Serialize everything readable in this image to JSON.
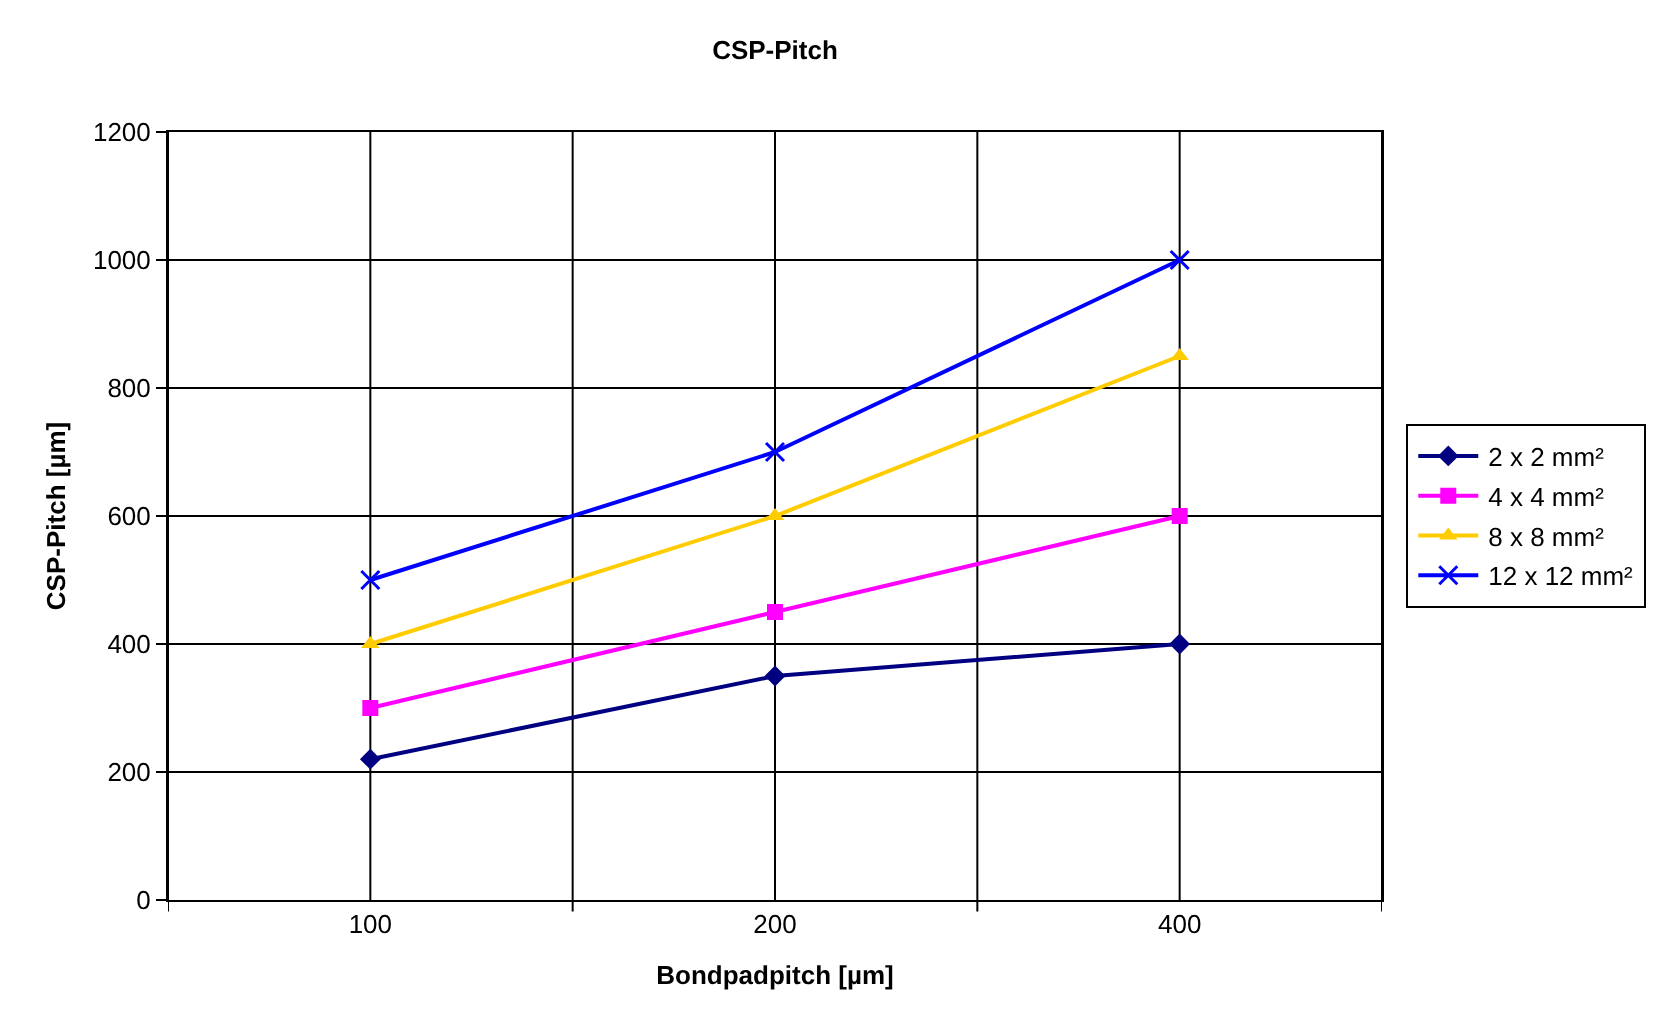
{
  "chart_data": {
    "type": "line",
    "title": "CSP-Pitch",
    "xlabel": "Bondpadpitch [µm]",
    "ylabel": "CSP-Pitch [µm]",
    "categories": [
      "100",
      "200",
      "400"
    ],
    "series": [
      {
        "name": "2 x 2 mm²",
        "color": "#000080",
        "marker": "diamond",
        "values": [
          220,
          350,
          400
        ]
      },
      {
        "name": "4 x 4 mm²",
        "color": "#ff00ff",
        "marker": "square",
        "values": [
          300,
          450,
          600
        ]
      },
      {
        "name": "8 x 8 mm²",
        "color": "#ffcc00",
        "marker": "triangle",
        "values": [
          400,
          600,
          850
        ]
      },
      {
        "name": "12 x 12 mm²",
        "color": "#0000ff",
        "marker": "cross",
        "values": [
          500,
          700,
          1000
        ]
      }
    ],
    "ylim": [
      0,
      1200
    ],
    "yticks": [
      0,
      200,
      400,
      600,
      800,
      1000,
      1200
    ],
    "grid": true,
    "legend": "right",
    "line_style": "solid"
  }
}
